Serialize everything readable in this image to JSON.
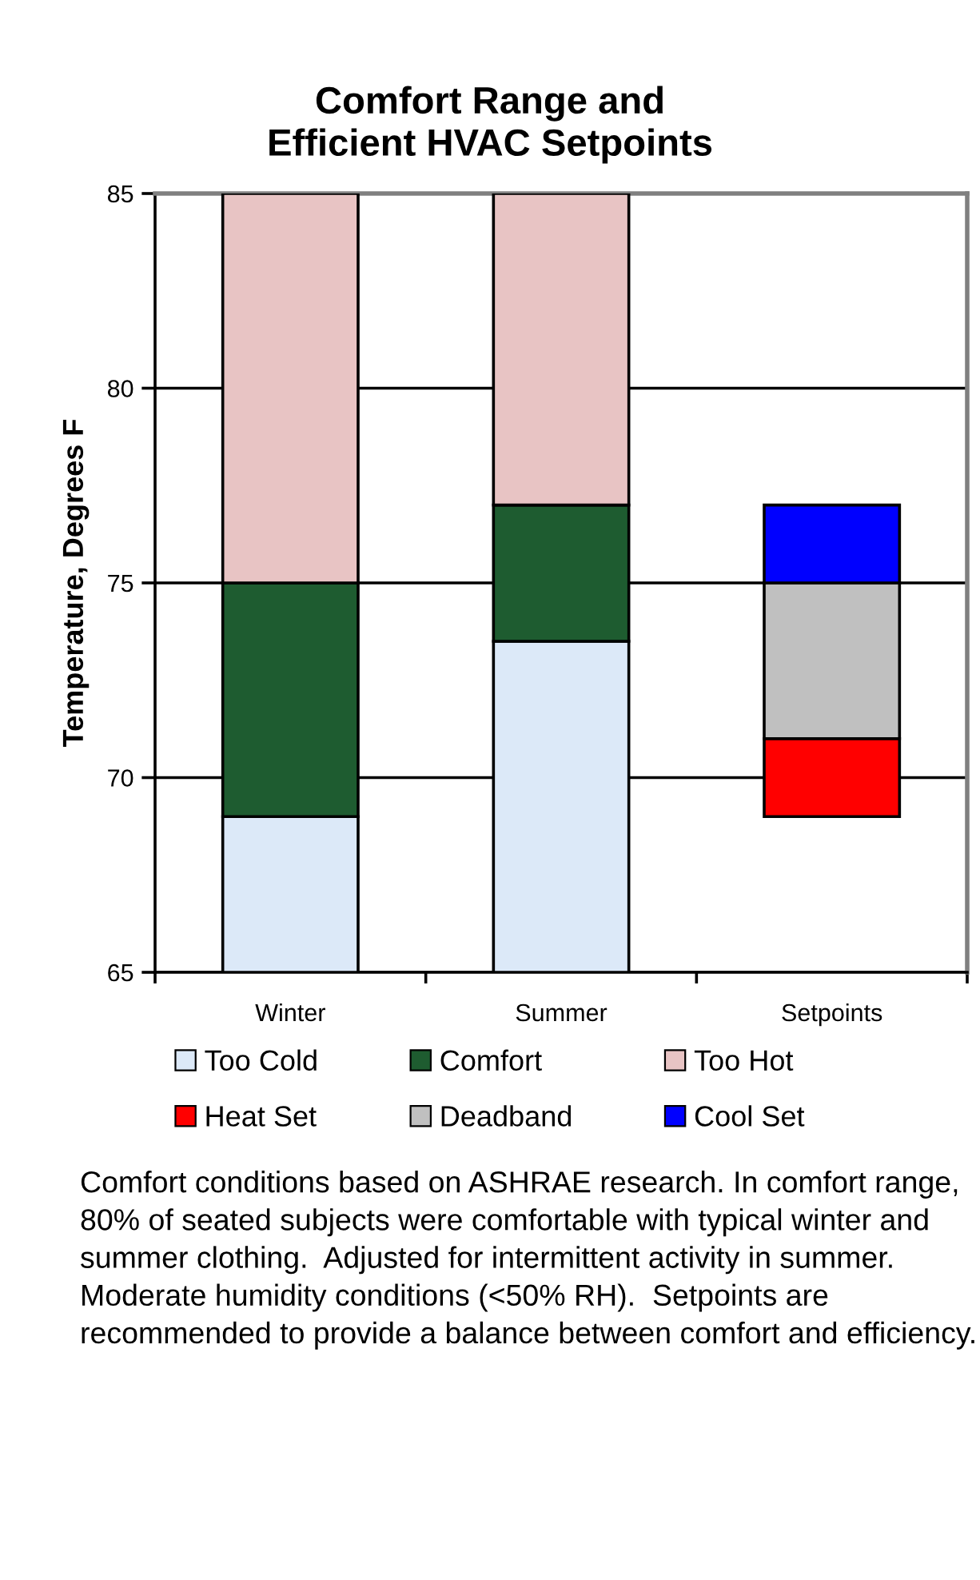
{
  "chart_data": {
    "type": "bar",
    "title": "Comfort Range and\nEfficient HVAC Setpoints",
    "ylabel": "Temperature, Degrees F",
    "categories": [
      "Winter",
      "Summer",
      "Setpoints"
    ],
    "stacked": false,
    "series": [
      {
        "name": "Too Cold",
        "color": "#dce9f8",
        "base": [
          65,
          65,
          null
        ],
        "values": [
          4,
          8.5,
          null
        ]
      },
      {
        "name": "Comfort",
        "color": "#1e5c30",
        "base": [
          69,
          73.5,
          null
        ],
        "values": [
          6,
          3.5,
          null
        ]
      },
      {
        "name": "Too Hot",
        "color": "#e8c4c4",
        "base": [
          75,
          77,
          null
        ],
        "values": [
          10,
          8,
          null
        ]
      },
      {
        "name": "Heat Set",
        "color": "#ff0000",
        "base": [
          null,
          null,
          69
        ],
        "values": [
          null,
          null,
          2
        ]
      },
      {
        "name": "Deadband",
        "color": "#c0c0c0",
        "base": [
          null,
          null,
          71
        ],
        "values": [
          null,
          null,
          4
        ]
      },
      {
        "name": "Cool Set",
        "color": "#0000ff",
        "base": [
          null,
          null,
          75
        ],
        "values": [
          null,
          null,
          2
        ]
      }
    ],
    "ylim": [
      65,
      85
    ],
    "yticks": [
      65,
      70,
      75,
      80,
      85
    ],
    "grid": "y",
    "legend": "bottom",
    "annotations": [
      "Comfort conditions based on ASHRAE research. In comfort range, 80% of seated subjects were comfortable with typical winter and summer clothing.  Adjusted for intermittent activity in summer.  Moderate humidity conditions (<50% RH).  Setpoints are recommended to provide a balance between comfort and efficiency."
    ]
  }
}
